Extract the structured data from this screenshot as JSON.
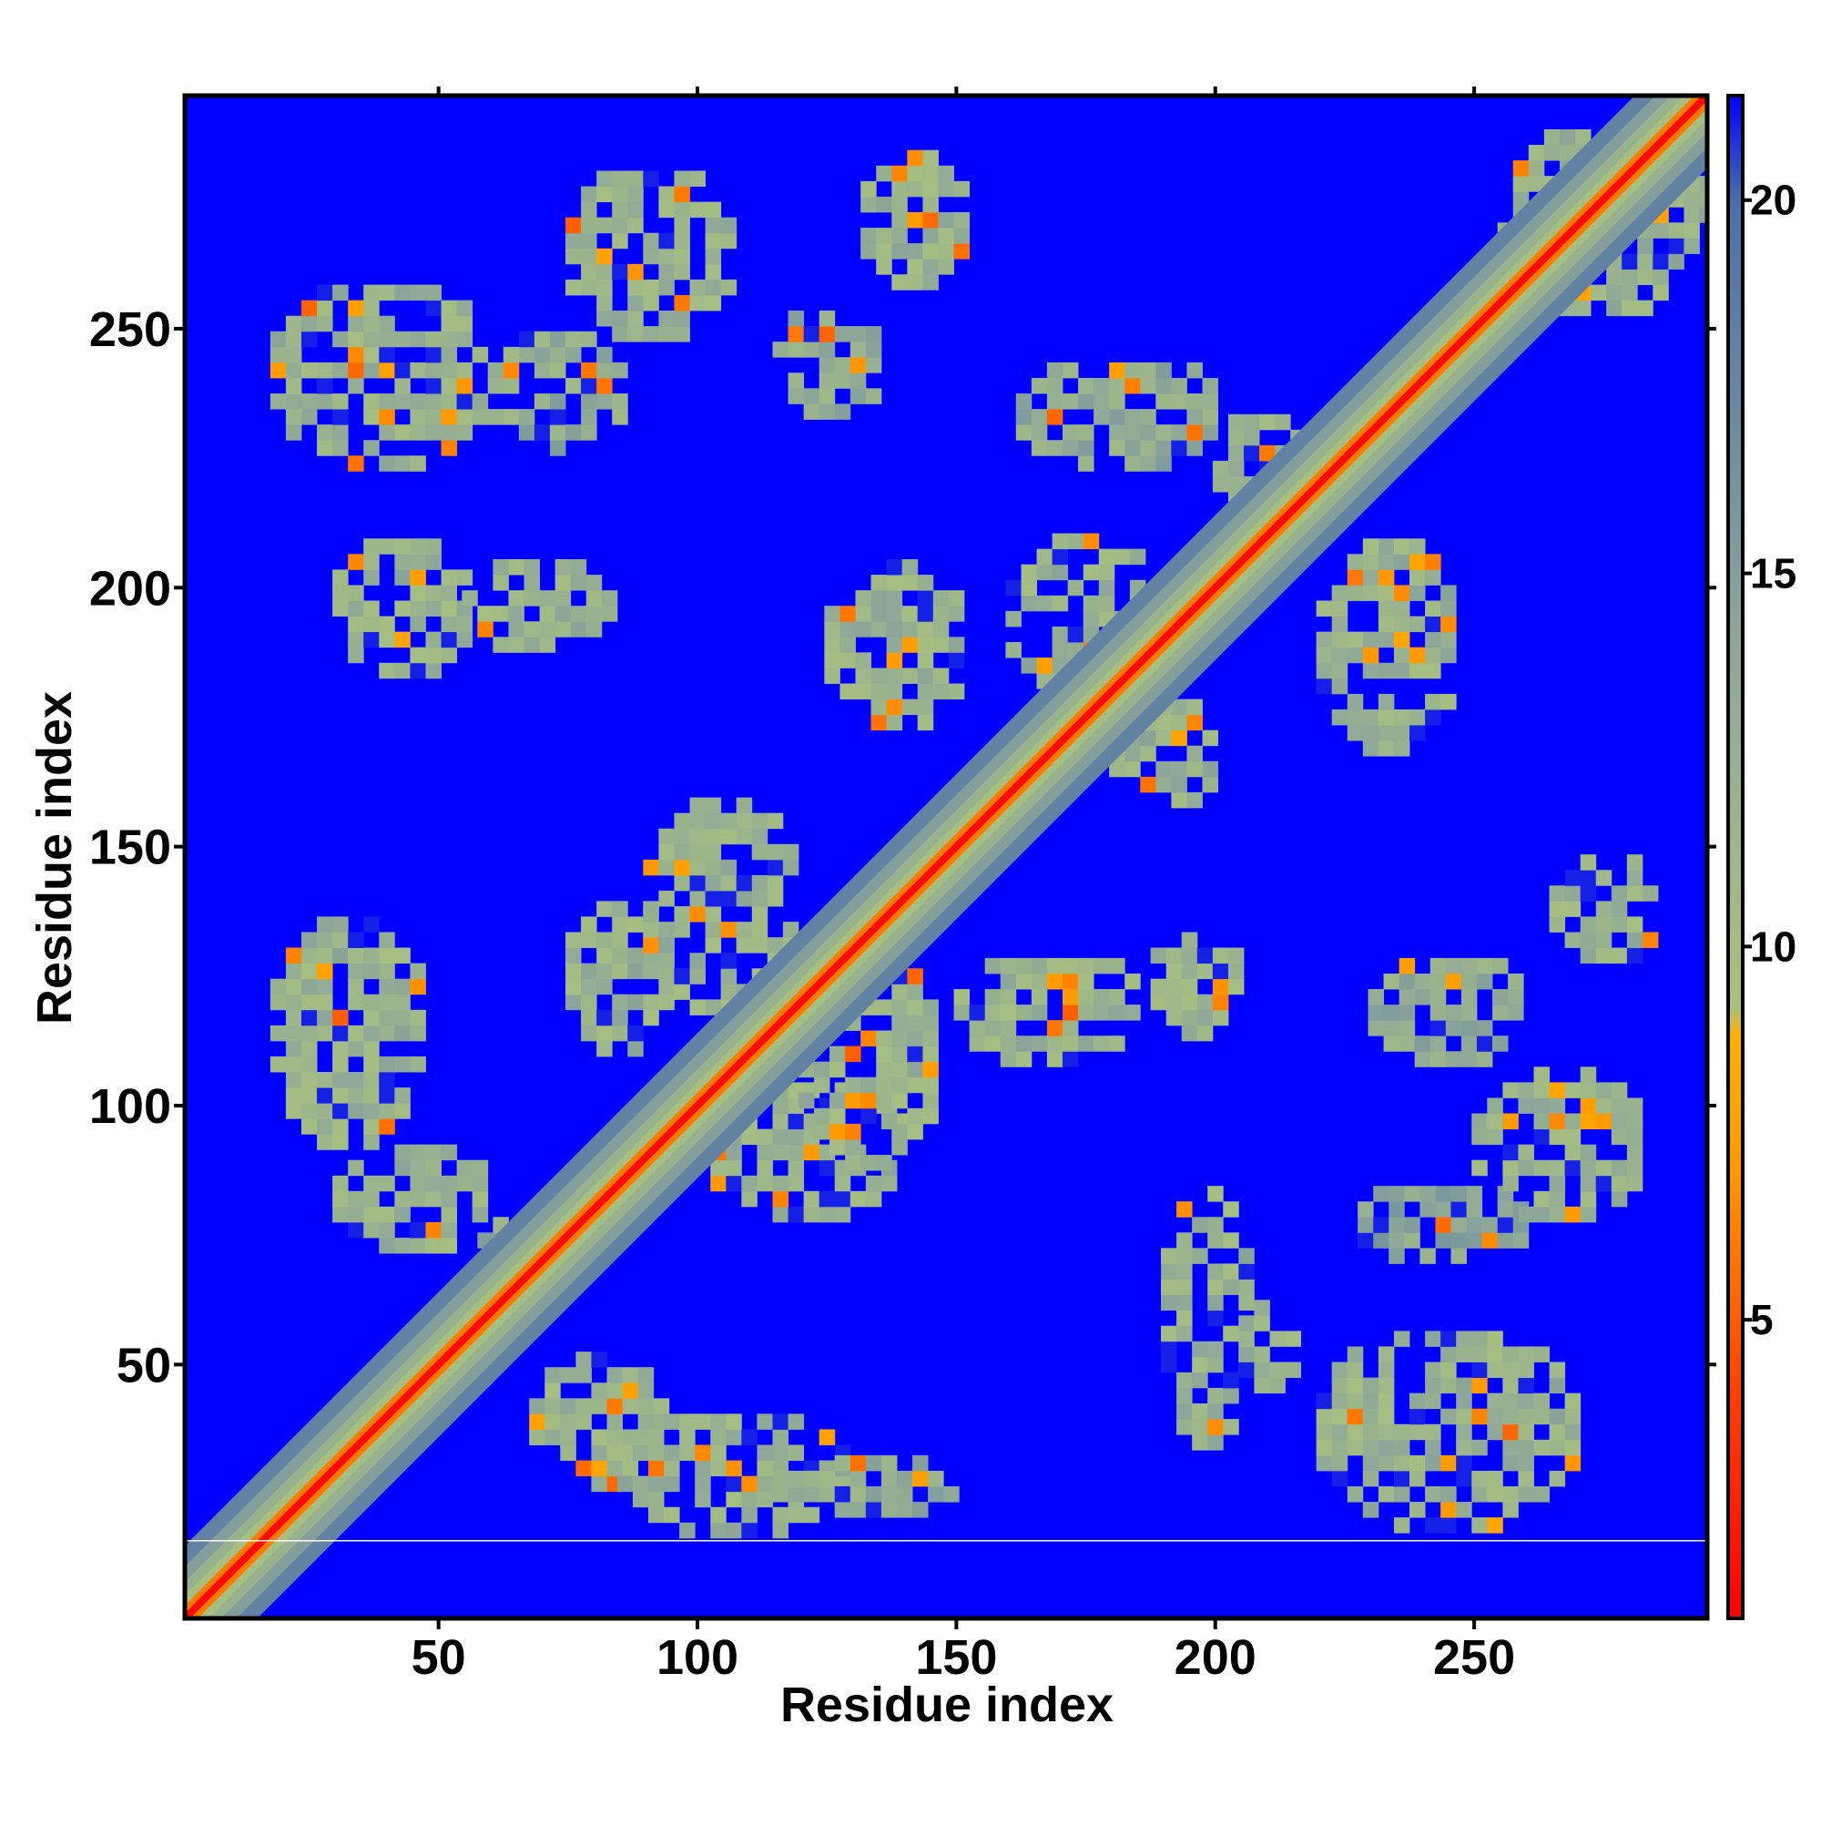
{
  "chart_data": {
    "type": "heatmap",
    "title": "",
    "xlabel": "Residue index",
    "ylabel": "Residue index",
    "xlim": [
      1,
      295
    ],
    "ylim": [
      1,
      295
    ],
    "x_ticks": [
      50,
      100,
      150,
      200,
      250
    ],
    "x_tick_labels": [
      "50",
      "100",
      "150",
      "200",
      "250"
    ],
    "y_ticks": [
      50,
      100,
      150,
      200,
      250
    ],
    "y_tick_labels": [
      "50",
      "100",
      "150",
      "200",
      "250"
    ],
    "colorbar": {
      "range": [
        1,
        21.4
      ],
      "ticks": [
        5,
        10,
        15,
        20
      ],
      "tick_labels": [
        "5",
        "10",
        "15",
        "20"
      ],
      "stops": [
        {
          "value": 1,
          "color": "#ff0000"
        },
        {
          "value": 4,
          "color": "#ff4000"
        },
        {
          "value": 7,
          "color": "#ff9900"
        },
        {
          "value": 8.8,
          "color": "#ffb000"
        },
        {
          "value": 9.2,
          "color": "#a8c080"
        },
        {
          "value": 14,
          "color": "#8fa898"
        },
        {
          "value": 20,
          "color": "#4a6fa8"
        },
        {
          "value": 21.4,
          "color": "#0000ff"
        }
      ]
    },
    "background_color": "#0000ff",
    "diagonal": {
      "from": 1,
      "to": 295
    },
    "separator_line": {
      "at_residue": 16,
      "color": "#ffffff"
    },
    "contact_regions": [
      {
        "x": [
          21,
          28
        ],
        "y": [
          21,
          34
        ],
        "value": 11
      },
      {
        "x": [
          24,
          35
        ],
        "y": [
          25,
          36
        ],
        "value": 11
      },
      {
        "x": [
          30,
          59
        ],
        "y": [
          74,
          92
        ],
        "value": 11
      },
      {
        "x": [
          58,
          70
        ],
        "y": [
          60,
          80
        ],
        "value": 12
      },
      {
        "x": [
          68,
          92
        ],
        "y": [
          28,
          52
        ],
        "value": 11
      },
      {
        "x": [
          85,
          128
        ],
        "y": [
          19,
          42
        ],
        "value": 11
      },
      {
        "x": [
          115,
          150
        ],
        "y": [
          23,
          32
        ],
        "value": 12
      },
      {
        "x": [
          190,
          205
        ],
        "y": [
          36,
          85
        ],
        "value": 11
      },
      {
        "x": [
          205,
          215
        ],
        "y": [
          47,
          62
        ],
        "value": 11
      },
      {
        "x": [
          220,
          268
        ],
        "y": [
          20,
          58
        ],
        "value": 11
      },
      {
        "x": [
          225,
          260
        ],
        "y": [
          72,
          85
        ],
        "value": 13
      },
      {
        "x": [
          250,
          282
        ],
        "y": [
          80,
          108
        ],
        "value": 11
      },
      {
        "x": [
          230,
          258
        ],
        "y": [
          110,
          130
        ],
        "value": 12
      },
      {
        "x": [
          265,
          285
        ],
        "y": [
          130,
          148
        ],
        "value": 11
      },
      {
        "x": [
          188,
          203
        ],
        "y": [
          115,
          135
        ],
        "value": 11
      },
      {
        "x": [
          18,
          46
        ],
        "y": [
          94,
          136
        ],
        "value": 11
      },
      {
        "x": [
          75,
          95
        ],
        "y": [
          112,
          140
        ],
        "value": 11
      },
      {
        "x": [
          90,
          118
        ],
        "y": [
          120,
          160
        ],
        "value": 11
      },
      {
        "x": [
          100,
          140
        ],
        "y": [
          80,
          105
        ],
        "value": 11
      },
      {
        "x": [
          120,
          145
        ],
        "y": [
          90,
          130
        ],
        "value": 11
      },
      {
        "x": [
          150,
          185
        ],
        "y": [
          110,
          130
        ],
        "value": 11
      },
      {
        "x": [
          125,
          150
        ],
        "y": [
          175,
          205
        ],
        "value": 11
      },
      {
        "x": [
          160,
          190
        ],
        "y": [
          180,
          210
        ],
        "value": 11
      },
      {
        "x": [
          180,
          200
        ],
        "y": [
          160,
          180
        ],
        "value": 11
      },
      {
        "x": [
          30,
          55
        ],
        "y": [
          185,
          210
        ],
        "value": 11
      },
      {
        "x": [
          55,
          82
        ],
        "y": [
          190,
          205
        ],
        "value": 11
      },
      {
        "x": [
          18,
          58
        ],
        "y": [
          225,
          260
        ],
        "value": 11
      },
      {
        "x": [
          75,
          105
        ],
        "y": [
          250,
          282
        ],
        "value": 11
      },
      {
        "x": [
          60,
          85
        ],
        "y": [
          228,
          250
        ],
        "value": 12
      },
      {
        "x": [
          115,
          135
        ],
        "y": [
          235,
          255
        ],
        "value": 12
      },
      {
        "x": [
          132,
          150
        ],
        "y": [
          260,
          285
        ],
        "value": 11
      },
      {
        "x": [
          162,
          200
        ],
        "y": [
          225,
          245
        ],
        "value": 12
      },
      {
        "x": [
          200,
          225
        ],
        "y": [
          215,
          235
        ],
        "value": 11
      },
      {
        "x": [
          220,
          245
        ],
        "y": [
          170,
          210
        ],
        "value": 11
      },
      {
        "x": [
          255,
          295
        ],
        "y": [
          255,
          290
        ],
        "value": 11
      }
    ]
  }
}
